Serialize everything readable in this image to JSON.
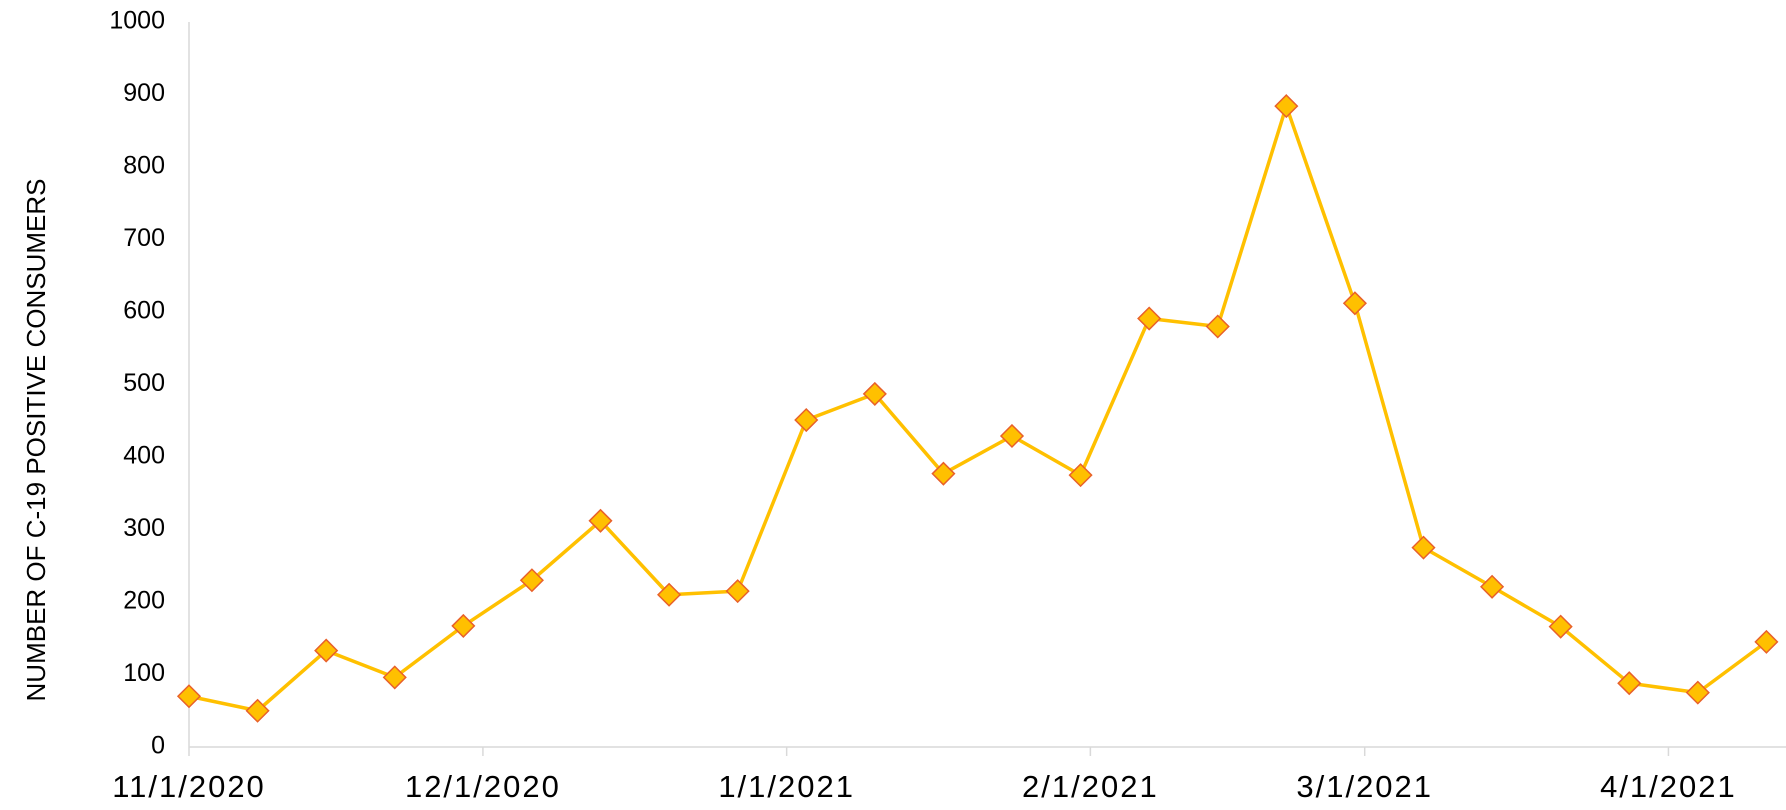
{
  "chart_data": {
    "type": "line",
    "y_label": "NUMBER OF C-19 POSITIVE CONSUMERS",
    "x": [
      "11/1/2020",
      "11/8/2020",
      "11/15/2020",
      "11/22/2020",
      "11/29/2020",
      "12/6/2020",
      "12/13/2020",
      "12/20/2020",
      "12/27/2020",
      "1/3/2021",
      "1/10/2021",
      "1/17/2021",
      "1/24/2021",
      "1/31/2021",
      "2/7/2021",
      "2/14/2021",
      "2/21/2021",
      "2/28/2021",
      "3/7/2021",
      "3/14/2021",
      "3/21/2021",
      "3/28/2021",
      "4/4/2021",
      "4/11/2021"
    ],
    "series": [
      {
        "name": "C-19 positive consumers",
        "color": "#FFC000",
        "marker_edge": "#E8602A",
        "values": [
          70,
          50,
          133,
          96,
          167,
          230,
          312,
          210,
          215,
          451,
          487,
          377,
          429,
          375,
          591,
          580,
          884,
          612,
          275,
          221,
          166,
          88,
          75,
          145
        ]
      }
    ],
    "xlim": [
      "11/1/2020",
      "4/13/2021"
    ],
    "xticks": [
      "11/1/2020",
      "12/1/2020",
      "1/1/2021",
      "2/1/2021",
      "3/1/2021",
      "4/1/2021"
    ],
    "ylim": [
      0,
      1000
    ],
    "yticks": [
      0,
      100,
      200,
      300,
      400,
      500,
      600,
      700,
      800,
      900,
      1000
    ],
    "grid": false
  }
}
